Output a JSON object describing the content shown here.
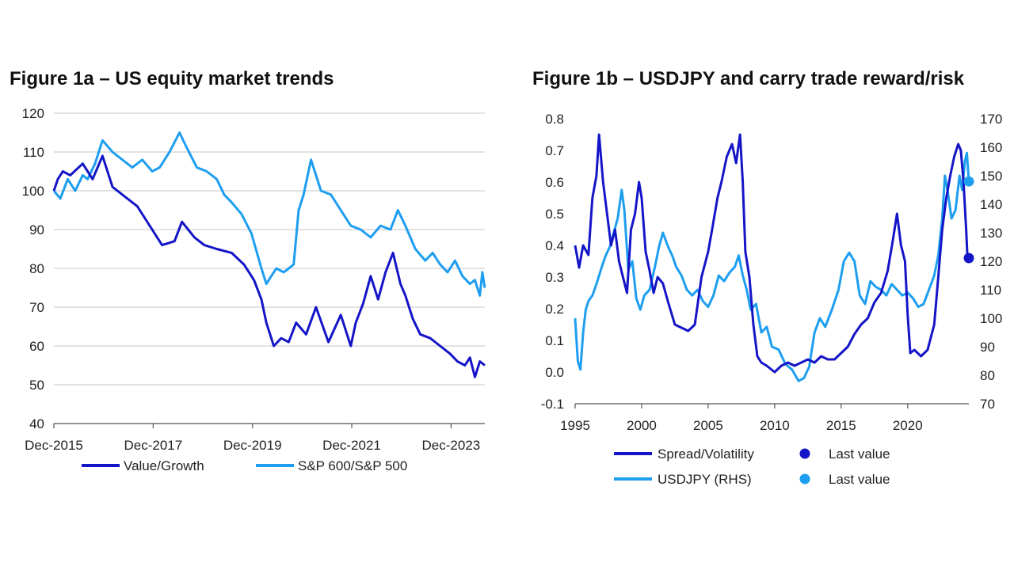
{
  "figure_a": {
    "title": "Figure 1a – US equity market trends"
  },
  "figure_b": {
    "title": "Figure 1b – USDJPY and carry trade reward/risk"
  },
  "chart_data": [
    {
      "type": "line",
      "title": "Figure 1a – US equity market trends",
      "xlabel": "",
      "ylabel": "",
      "xlim": [
        2015.92,
        2024.6
      ],
      "ylim": [
        40,
        120
      ],
      "yticks": [
        40,
        50,
        60,
        70,
        80,
        90,
        100,
        110,
        120
      ],
      "xticks": [
        {
          "value": 2015.92,
          "label": "Dec-2015"
        },
        {
          "value": 2017.92,
          "label": "Dec-2017"
        },
        {
          "value": 2019.92,
          "label": "Dec-2019"
        },
        {
          "value": 2021.92,
          "label": "Dec-2021"
        },
        {
          "value": 2023.92,
          "label": "Dec-2023"
        }
      ],
      "grid": true,
      "legend_position": "bottom",
      "series": [
        {
          "name": "Value/Growth",
          "color": "#1515c8",
          "x": [
            2015.92,
            2016.0,
            2016.1,
            2016.25,
            2016.5,
            2016.7,
            2016.9,
            2017.1,
            2017.3,
            2017.6,
            2017.9,
            2018.1,
            2018.35,
            2018.5,
            2018.75,
            2018.95,
            2019.2,
            2019.5,
            2019.75,
            2019.95,
            2020.1,
            2020.2,
            2020.35,
            2020.5,
            2020.65,
            2020.8,
            2021.0,
            2021.2,
            2021.45,
            2021.7,
            2021.9,
            2022.0,
            2022.15,
            2022.3,
            2022.45,
            2022.6,
            2022.75,
            2022.9,
            2023.0,
            2023.15,
            2023.3,
            2023.5,
            2023.7,
            2023.9,
            2024.05,
            2024.2,
            2024.3,
            2024.4,
            2024.5,
            2024.6
          ],
          "y": [
            100,
            103,
            105,
            104,
            107,
            103,
            109,
            101,
            99,
            96,
            90,
            86,
            87,
            92,
            88,
            86,
            85,
            84,
            81,
            77,
            72,
            66,
            60,
            62,
            61,
            66,
            63,
            70,
            61,
            68,
            60,
            66,
            71,
            78,
            72,
            79,
            84,
            76,
            73,
            67,
            63,
            62,
            60,
            58,
            56,
            55,
            57,
            52,
            56,
            55
          ]
        },
        {
          "name": "S&P 600/S&P 500",
          "color": "#1e9ef0",
          "x": [
            2015.92,
            2016.05,
            2016.2,
            2016.35,
            2016.5,
            2016.6,
            2016.75,
            2016.9,
            2017.1,
            2017.3,
            2017.5,
            2017.7,
            2017.9,
            2018.05,
            2018.25,
            2018.45,
            2018.6,
            2018.8,
            2019.0,
            2019.2,
            2019.35,
            2019.5,
            2019.7,
            2019.9,
            2020.1,
            2020.2,
            2020.4,
            2020.55,
            2020.75,
            2020.85,
            2020.95,
            2021.1,
            2021.3,
            2021.5,
            2021.7,
            2021.9,
            2022.1,
            2022.3,
            2022.5,
            2022.7,
            2022.85,
            2023.0,
            2023.2,
            2023.4,
            2023.55,
            2023.7,
            2023.85,
            2024.0,
            2024.15,
            2024.3,
            2024.4,
            2024.5,
            2024.55,
            2024.6
          ],
          "y": [
            100,
            98,
            103,
            100,
            104,
            103,
            107,
            113,
            110,
            108,
            106,
            108,
            105,
            106,
            110,
            115,
            111,
            106,
            105,
            103,
            99,
            97,
            94,
            89,
            80,
            76,
            80,
            79,
            81,
            95,
            99,
            108,
            100,
            99,
            95,
            91,
            90,
            88,
            91,
            90,
            95,
            91,
            85,
            82,
            84,
            81,
            79,
            82,
            78,
            76,
            77,
            73,
            79,
            75
          ]
        }
      ]
    },
    {
      "type": "line",
      "title": "Figure 1b – USDJPY and carry trade reward/risk",
      "xlabel": "",
      "ylabel": "",
      "xlim": [
        1995,
        2024.6
      ],
      "ylim": [
        -0.1,
        0.8
      ],
      "y2lim": [
        70,
        170
      ],
      "yticks": [
        -0.1,
        0.0,
        0.1,
        0.2,
        0.3,
        0.4,
        0.5,
        0.6,
        0.7,
        0.8
      ],
      "ytick_labels": [
        "-0.1",
        "0.0",
        "0.1",
        "0.2",
        "0.3",
        "0.4",
        "0.5",
        "0.6",
        "0.7",
        "0.8"
      ],
      "y2ticks": [
        70,
        80,
        90,
        100,
        110,
        120,
        130,
        140,
        150,
        160,
        170
      ],
      "xticks": [
        1995,
        2000,
        2005,
        2010,
        2015,
        2020
      ],
      "grid": false,
      "legend_position": "bottom",
      "series": [
        {
          "name": "Spread/Volatility",
          "axis": "left",
          "color": "#1515c8",
          "x": [
            1995.0,
            1995.3,
            1995.6,
            1996.0,
            1996.3,
            1996.6,
            1996.8,
            1997.1,
            1997.4,
            1997.7,
            1998.0,
            1998.3,
            1998.6,
            1998.9,
            1999.2,
            1999.5,
            1999.8,
            2000.0,
            2000.3,
            2000.6,
            2000.9,
            2001.2,
            2001.6,
            2002.0,
            2002.5,
            2003.0,
            2003.5,
            2004.0,
            2004.5,
            2005.0,
            2005.3,
            2005.7,
            2006.0,
            2006.4,
            2006.8,
            2007.1,
            2007.4,
            2007.6,
            2007.8,
            2008.1,
            2008.4,
            2008.7,
            2009.0,
            2009.4,
            2010.0,
            2010.5,
            2011.0,
            2011.5,
            2012.0,
            2012.5,
            2013.0,
            2013.5,
            2014.0,
            2014.5,
            2015.0,
            2015.5,
            2016.0,
            2016.5,
            2017.0,
            2017.5,
            2018.0,
            2018.5,
            2018.9,
            2019.2,
            2019.5,
            2019.8,
            2020.0,
            2020.2,
            2020.5,
            2021.0,
            2021.5,
            2022.0,
            2022.3,
            2022.6,
            2022.9,
            2023.2,
            2023.5,
            2023.8,
            2024.0,
            2024.2,
            2024.4,
            2024.5
          ],
          "y": [
            0.4,
            0.33,
            0.4,
            0.37,
            0.55,
            0.62,
            0.75,
            0.6,
            0.5,
            0.4,
            0.45,
            0.35,
            0.3,
            0.25,
            0.45,
            0.5,
            0.6,
            0.55,
            0.38,
            0.32,
            0.25,
            0.3,
            0.28,
            0.22,
            0.15,
            0.14,
            0.13,
            0.15,
            0.3,
            0.38,
            0.45,
            0.55,
            0.6,
            0.68,
            0.72,
            0.66,
            0.75,
            0.6,
            0.38,
            0.3,
            0.15,
            0.05,
            0.03,
            0.02,
            0.0,
            0.02,
            0.03,
            0.02,
            0.03,
            0.04,
            0.03,
            0.05,
            0.04,
            0.04,
            0.06,
            0.08,
            0.12,
            0.15,
            0.17,
            0.22,
            0.25,
            0.32,
            0.42,
            0.5,
            0.4,
            0.35,
            0.18,
            0.06,
            0.07,
            0.05,
            0.07,
            0.15,
            0.3,
            0.45,
            0.55,
            0.62,
            0.68,
            0.72,
            0.7,
            0.6,
            0.45,
            0.36
          ]
        },
        {
          "name": "USDJPY (RHS)",
          "axis": "right",
          "color": "#1e9ef0",
          "x": [
            1995.0,
            1995.2,
            1995.4,
            1995.6,
            1995.8,
            1996.0,
            1996.3,
            1996.6,
            1997.0,
            1997.3,
            1997.6,
            1997.9,
            1998.2,
            1998.5,
            1998.7,
            1999.0,
            1999.3,
            1999.6,
            1999.9,
            2000.2,
            2000.6,
            2001.0,
            2001.3,
            2001.6,
            2002.0,
            2002.3,
            2002.6,
            2003.0,
            2003.4,
            2003.8,
            2004.2,
            2004.6,
            2005.0,
            2005.4,
            2005.8,
            2006.2,
            2006.6,
            2007.0,
            2007.3,
            2007.6,
            2007.9,
            2008.2,
            2008.6,
            2009.0,
            2009.4,
            2009.8,
            2010.3,
            2010.8,
            2011.3,
            2011.8,
            2012.2,
            2012.6,
            2013.0,
            2013.4,
            2013.8,
            2014.3,
            2014.8,
            2015.2,
            2015.6,
            2016.0,
            2016.4,
            2016.8,
            2017.2,
            2017.6,
            2018.0,
            2018.4,
            2018.8,
            2019.2,
            2019.6,
            2020.0,
            2020.4,
            2020.8,
            2021.2,
            2021.6,
            2022.0,
            2022.3,
            2022.6,
            2022.8,
            2023.0,
            2023.3,
            2023.6,
            2023.9,
            2024.1,
            2024.3,
            2024.45,
            2024.6
          ],
          "y": [
            100,
            85,
            82,
            95,
            103,
            106,
            108,
            112,
            118,
            122,
            125,
            130,
            135,
            145,
            138,
            117,
            120,
            107,
            103,
            108,
            110,
            118,
            125,
            130,
            125,
            122,
            118,
            115,
            110,
            108,
            110,
            106,
            104,
            108,
            115,
            113,
            116,
            118,
            122,
            115,
            110,
            103,
            105,
            95,
            97,
            90,
            89,
            84,
            82,
            78,
            79,
            83,
            95,
            100,
            97,
            103,
            110,
            120,
            123,
            120,
            108,
            105,
            113,
            111,
            110,
            108,
            112,
            110,
            108,
            109,
            107,
            104,
            105,
            110,
            115,
            122,
            135,
            150,
            145,
            135,
            138,
            150,
            145,
            155,
            158,
            148
          ]
        }
      ],
      "last_values": [
        {
          "label": "Last value",
          "series": "Spread/Volatility",
          "axis": "left",
          "x": 2024.6,
          "y": 0.36,
          "color": "#1515c8"
        },
        {
          "label": "Last value",
          "series": "USDJPY (RHS)",
          "axis": "right",
          "x": 2024.6,
          "y": 148,
          "color": "#1e9ef0"
        }
      ]
    }
  ]
}
